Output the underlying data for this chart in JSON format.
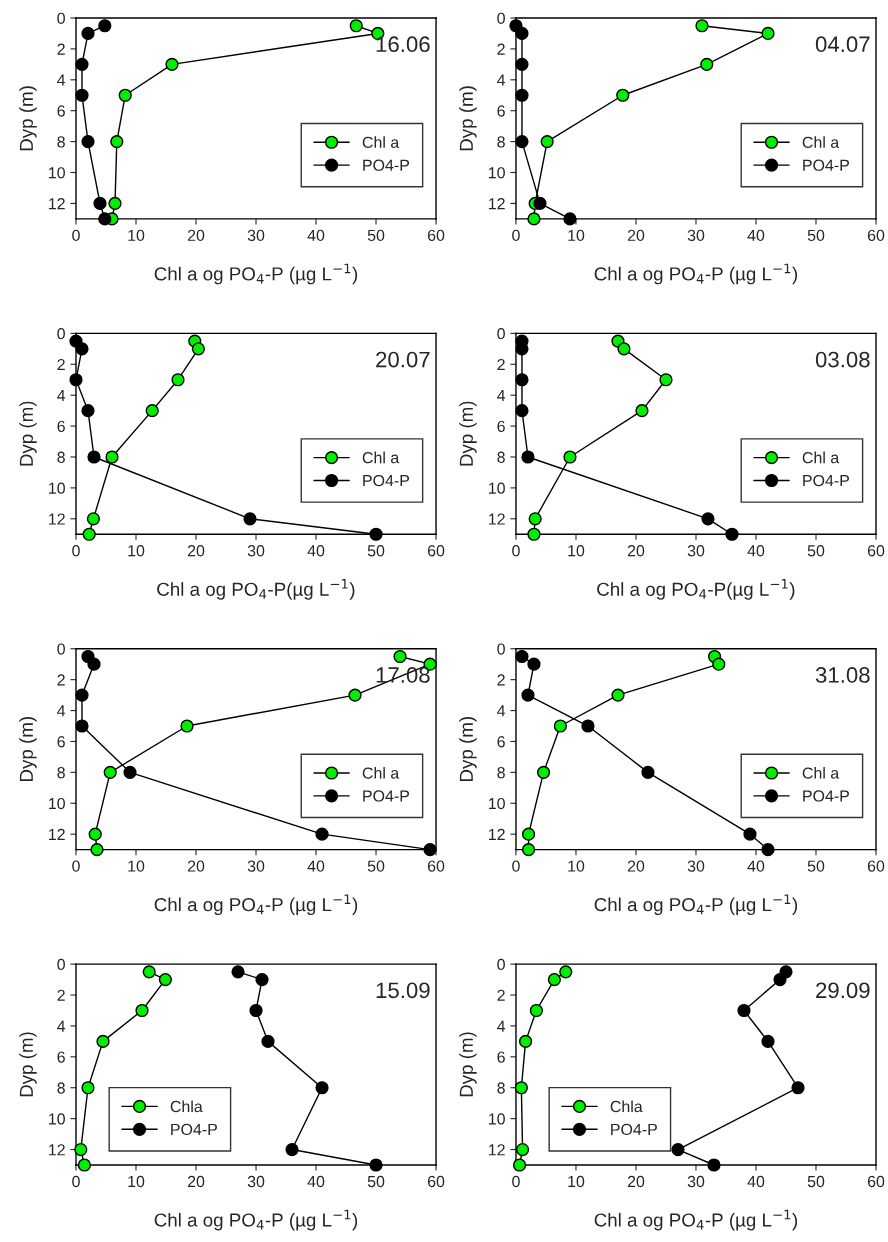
{
  "chart_data": [
    {
      "type": "line",
      "xlabel": "Chl a og PO$_{4}$-P (µg L$^{−1}$)",
      "ylabel": "Dyp (m)",
      "annotations": [
        "16.06"
      ],
      "xlim": [
        0,
        60
      ],
      "xticks": [
        0,
        10,
        20,
        30,
        40,
        50,
        60
      ],
      "ylim": [
        13,
        0
      ],
      "yticks": [
        0,
        2,
        4,
        6,
        8,
        10,
        12
      ],
      "legend": "bottom right",
      "marker": "circle",
      "grid": false,
      "series": [
        {
          "name": "Chl a",
          "color": "#00ee00",
          "x": [
            46.7,
            50.3,
            16,
            8.2,
            6.8,
            6.5,
            6
          ],
          "values": [
            0.5,
            1,
            3,
            5,
            8,
            12,
            13
          ]
        },
        {
          "name": "PO4-P",
          "color": "#000000",
          "x": [
            4.8,
            2,
            1,
            1,
            2,
            4,
            4.8
          ],
          "values": [
            0.5,
            1,
            3,
            5,
            8,
            12,
            13
          ]
        }
      ]
    },
    {
      "type": "line",
      "xlabel": "Chl a og PO$_{4}$-P (µg L$^{−1}$)",
      "ylabel": "Dyp (m)",
      "annotations": [
        "04.07"
      ],
      "xlim": [
        0,
        60
      ],
      "xticks": [
        0,
        10,
        20,
        30,
        40,
        50,
        60
      ],
      "ylim": [
        13,
        0
      ],
      "yticks": [
        0,
        2,
        4,
        6,
        8,
        10,
        12
      ],
      "legend": "bottom right",
      "marker": "circle",
      "grid": false,
      "series": [
        {
          "name": "Chl a",
          "color": "#00ee00",
          "x": [
            31,
            42,
            31.8,
            17.8,
            5.2,
            3.2,
            3
          ],
          "values": [
            0.5,
            1,
            3,
            5,
            8,
            12,
            13
          ]
        },
        {
          "name": "PO4-P",
          "color": "#000000",
          "x": [
            0,
            1,
            1,
            1,
            1,
            4,
            9
          ],
          "values": [
            0.5,
            1,
            3,
            5,
            8,
            12,
            13
          ]
        }
      ]
    },
    {
      "type": "line",
      "xlabel": "Chl a og PO$_{4}$-P(µg L$^{−1}$)",
      "ylabel": "Dyp (m)",
      "annotations": [
        "20.07"
      ],
      "xlim": [
        0,
        60
      ],
      "xticks": [
        0,
        10,
        20,
        30,
        40,
        50,
        60
      ],
      "ylim": [
        13,
        0
      ],
      "yticks": [
        0,
        2,
        4,
        6,
        8,
        10,
        12
      ],
      "legend": "bottom right",
      "marker": "circle",
      "grid": false,
      "series": [
        {
          "name": "Chl a",
          "color": "#00ee00",
          "x": [
            19.8,
            20.4,
            17,
            12.7,
            6,
            2.9,
            2.2
          ],
          "values": [
            0.5,
            1,
            3,
            5,
            8,
            12,
            13
          ]
        },
        {
          "name": "PO4-P",
          "color": "#000000",
          "x": [
            0,
            1,
            0,
            2,
            3,
            29,
            50
          ],
          "values": [
            0.5,
            1,
            3,
            5,
            8,
            12,
            13
          ]
        }
      ]
    },
    {
      "type": "line",
      "xlabel": "Chl a og PO$_{4}$-P(µg L$^{−1}$)",
      "ylabel": "Dyp (m)",
      "annotations": [
        "03.08"
      ],
      "xlim": [
        0,
        60
      ],
      "xticks": [
        0,
        10,
        20,
        30,
        40,
        50,
        60
      ],
      "ylim": [
        13,
        0
      ],
      "yticks": [
        0,
        2,
        4,
        6,
        8,
        10,
        12
      ],
      "legend": "bottom right",
      "marker": "circle",
      "grid": false,
      "series": [
        {
          "name": "Chl a",
          "color": "#00ee00",
          "x": [
            17,
            18,
            25,
            21,
            9,
            3.2,
            3
          ],
          "values": [
            0.5,
            1,
            3,
            5,
            8,
            12,
            13
          ]
        },
        {
          "name": "PO4-P",
          "color": "#000000",
          "x": [
            1,
            1,
            1,
            1,
            2,
            32,
            36
          ],
          "values": [
            0.5,
            1,
            3,
            5,
            8,
            12,
            13
          ]
        }
      ]
    },
    {
      "type": "line",
      "xlabel": "Chl a og PO$_{4}$-P (µg L$^{−1}$)",
      "ylabel": "Dyp (m)",
      "annotations": [
        "17.08"
      ],
      "xlim": [
        0,
        60
      ],
      "xticks": [
        0,
        10,
        20,
        30,
        40,
        50,
        60
      ],
      "ylim": [
        13,
        0
      ],
      "yticks": [
        0,
        2,
        4,
        6,
        8,
        10,
        12
      ],
      "legend": "bottom right",
      "marker": "circle",
      "grid": false,
      "series": [
        {
          "name": "Chl a",
          "color": "#00ee00",
          "x": [
            54,
            59,
            46.5,
            18.5,
            5.7,
            3.2,
            3.5
          ],
          "values": [
            0.5,
            1,
            3,
            5,
            8,
            12,
            13
          ]
        },
        {
          "name": "PO4-P",
          "color": "#000000",
          "x": [
            2,
            3,
            1,
            1,
            9,
            41,
            59
          ],
          "values": [
            0.5,
            1,
            3,
            5,
            8,
            12,
            13
          ]
        }
      ]
    },
    {
      "type": "line",
      "xlabel": "Chl a og PO$_{4}$-P (µg L$^{−1}$)",
      "ylabel": "Dyp (m)",
      "annotations": [
        "31.08"
      ],
      "xlim": [
        0,
        60
      ],
      "xticks": [
        0,
        10,
        20,
        30,
        40,
        50,
        60
      ],
      "ylim": [
        13,
        0
      ],
      "yticks": [
        0,
        2,
        4,
        6,
        8,
        10,
        12
      ],
      "legend": "bottom right",
      "marker": "circle",
      "grid": false,
      "series": [
        {
          "name": "Chl a",
          "color": "#00ee00",
          "x": [
            33.1,
            33.8,
            17,
            7.4,
            4.6,
            2.1,
            2.1
          ],
          "values": [
            0.5,
            1,
            3,
            5,
            8,
            12,
            13
          ]
        },
        {
          "name": "PO4-P",
          "color": "#000000",
          "x": [
            1,
            3,
            2,
            12,
            22,
            39,
            42
          ],
          "values": [
            0.5,
            1,
            3,
            5,
            8,
            12,
            13
          ]
        }
      ]
    },
    {
      "type": "line",
      "xlabel": "Chl a og PO$_{4}$-P (µg L$^{−1}$)",
      "ylabel": "Dyp (m)",
      "annotations": [
        "15.09"
      ],
      "xlim": [
        0,
        60
      ],
      "xticks": [
        0,
        10,
        20,
        30,
        40,
        50,
        60
      ],
      "ylim": [
        13,
        0
      ],
      "yticks": [
        0,
        2,
        4,
        6,
        8,
        10,
        12
      ],
      "legend": "bottom left",
      "marker": "circle",
      "grid": false,
      "series": [
        {
          "name": "Chla",
          "color": "#00ee00",
          "x": [
            12.2,
            14.9,
            11,
            4.5,
            2,
            0.8,
            1.4
          ],
          "values": [
            0.5,
            1,
            3,
            5,
            8,
            12,
            13
          ]
        },
        {
          "name": "PO4-P",
          "color": "#000000",
          "x": [
            27,
            31,
            30,
            32,
            41,
            36,
            50
          ],
          "values": [
            0.5,
            1,
            3,
            5,
            8,
            12,
            13
          ]
        }
      ]
    },
    {
      "type": "line",
      "xlabel": "Chl a og PO$_{4}$-P (µg L$^{−1}$)",
      "ylabel": "Dyp (m)",
      "annotations": [
        "29.09"
      ],
      "xlim": [
        0,
        60
      ],
      "xticks": [
        0,
        10,
        20,
        30,
        40,
        50,
        60
      ],
      "ylim": [
        13,
        0
      ],
      "yticks": [
        0,
        2,
        4,
        6,
        8,
        10,
        12
      ],
      "legend": "bottom left",
      "marker": "circle",
      "grid": false,
      "series": [
        {
          "name": "Chla",
          "color": "#00ee00",
          "x": [
            8.3,
            6.4,
            3.4,
            1.6,
            0.9,
            1.1,
            0.6
          ],
          "values": [
            0.5,
            1,
            3,
            5,
            8,
            12,
            13
          ]
        },
        {
          "name": "PO4-P",
          "color": "#000000",
          "x": [
            45,
            44,
            38,
            42,
            47,
            27,
            33
          ],
          "values": [
            0.5,
            1,
            3,
            5,
            8,
            12,
            13
          ]
        }
      ]
    }
  ]
}
